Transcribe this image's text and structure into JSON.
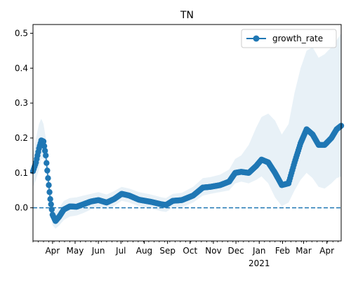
{
  "chart_data": {
    "type": "line",
    "title": "TN",
    "xlabel": "",
    "ylabel": "",
    "x_domain": [
      "2020-03-06",
      "2021-04-20"
    ],
    "ylim": [
      -0.095,
      0.525
    ],
    "yticks": [
      0.0,
      0.1,
      0.2,
      0.3,
      0.4,
      0.5
    ],
    "ytick_labels": [
      "0.0",
      "0.1",
      "0.2",
      "0.3",
      "0.4",
      "0.5"
    ],
    "xticks": [
      {
        "date": "2020-04-01",
        "label": "Apr"
      },
      {
        "date": "2020-05-01",
        "label": "May"
      },
      {
        "date": "2020-06-01",
        "label": "Jun"
      },
      {
        "date": "2020-07-01",
        "label": "Jul"
      },
      {
        "date": "2020-08-01",
        "label": "Aug"
      },
      {
        "date": "2020-09-01",
        "label": "Sep"
      },
      {
        "date": "2020-10-01",
        "label": "Oct"
      },
      {
        "date": "2020-11-01",
        "label": "Nov"
      },
      {
        "date": "2020-12-01",
        "label": "Dec"
      },
      {
        "date": "2021-01-01",
        "label": "Jan"
      },
      {
        "date": "2021-02-01",
        "label": "Feb"
      },
      {
        "date": "2021-03-01",
        "label": "Mar"
      },
      {
        "date": "2021-04-01",
        "label": "Apr"
      }
    ],
    "year_label": {
      "date": "2021-01-01",
      "label": "2021"
    },
    "reference_line": {
      "y": 0.0,
      "style": "dashed",
      "color": "#1f77b4"
    },
    "legend": {
      "position": "top-right",
      "entries": [
        "growth_rate"
      ]
    },
    "grid": false,
    "series": [
      {
        "name": "growth_rate",
        "color": "#1f77b4",
        "marker": "circle",
        "band_color": "#1f77b4",
        "band_opacity": 0.1,
        "points": [
          {
            "x": "2020-03-06",
            "y": 0.105,
            "lo": 0.06,
            "hi": 0.15
          },
          {
            "x": "2020-03-10",
            "y": 0.13,
            "lo": 0.08,
            "hi": 0.2
          },
          {
            "x": "2020-03-14",
            "y": 0.17,
            "lo": 0.11,
            "hi": 0.24
          },
          {
            "x": "2020-03-17",
            "y": 0.193,
            "lo": 0.14,
            "hi": 0.255
          },
          {
            "x": "2020-03-20",
            "y": 0.19,
            "lo": 0.14,
            "hi": 0.24
          },
          {
            "x": "2020-03-23",
            "y": 0.15,
            "lo": 0.105,
            "hi": 0.2
          },
          {
            "x": "2020-03-26",
            "y": 0.085,
            "lo": 0.045,
            "hi": 0.13
          },
          {
            "x": "2020-03-29",
            "y": 0.025,
            "lo": -0.01,
            "hi": 0.065
          },
          {
            "x": "2020-04-01",
            "y": -0.02,
            "lo": -0.05,
            "hi": 0.015
          },
          {
            "x": "2020-04-05",
            "y": -0.038,
            "lo": -0.06,
            "hi": -0.01
          },
          {
            "x": "2020-04-10",
            "y": -0.025,
            "lo": -0.05,
            "hi": 0.0
          },
          {
            "x": "2020-04-16",
            "y": -0.005,
            "lo": -0.035,
            "hi": 0.02
          },
          {
            "x": "2020-04-24",
            "y": 0.004,
            "lo": -0.025,
            "hi": 0.028
          },
          {
            "x": "2020-05-03",
            "y": 0.003,
            "lo": -0.022,
            "hi": 0.03
          },
          {
            "x": "2020-05-12",
            "y": 0.01,
            "lo": -0.015,
            "hi": 0.035
          },
          {
            "x": "2020-05-22",
            "y": 0.018,
            "lo": -0.005,
            "hi": 0.04
          },
          {
            "x": "2020-06-01",
            "y": 0.022,
            "lo": 0.0,
            "hi": 0.045
          },
          {
            "x": "2020-06-12",
            "y": 0.015,
            "lo": -0.005,
            "hi": 0.038
          },
          {
            "x": "2020-06-22",
            "y": 0.025,
            "lo": 0.005,
            "hi": 0.048
          },
          {
            "x": "2020-07-02",
            "y": 0.04,
            "lo": 0.02,
            "hi": 0.06
          },
          {
            "x": "2020-07-12",
            "y": 0.035,
            "lo": 0.015,
            "hi": 0.055
          },
          {
            "x": "2020-07-25",
            "y": 0.023,
            "lo": 0.005,
            "hi": 0.045
          },
          {
            "x": "2020-08-10",
            "y": 0.017,
            "lo": -0.002,
            "hi": 0.038
          },
          {
            "x": "2020-08-24",
            "y": 0.01,
            "lo": -0.01,
            "hi": 0.03
          },
          {
            "x": "2020-08-30",
            "y": 0.008,
            "lo": -0.012,
            "hi": 0.028
          },
          {
            "x": "2020-09-08",
            "y": 0.02,
            "lo": 0.0,
            "hi": 0.04
          },
          {
            "x": "2020-09-20",
            "y": 0.022,
            "lo": 0.002,
            "hi": 0.043
          },
          {
            "x": "2020-10-05",
            "y": 0.035,
            "lo": 0.015,
            "hi": 0.06
          },
          {
            "x": "2020-10-18",
            "y": 0.058,
            "lo": 0.035,
            "hi": 0.085
          },
          {
            "x": "2020-10-28",
            "y": 0.06,
            "lo": 0.04,
            "hi": 0.088
          },
          {
            "x": "2020-11-10",
            "y": 0.065,
            "lo": 0.045,
            "hi": 0.095
          },
          {
            "x": "2020-11-22",
            "y": 0.075,
            "lo": 0.05,
            "hi": 0.11
          },
          {
            "x": "2020-11-30",
            "y": 0.1,
            "lo": 0.07,
            "hi": 0.14
          },
          {
            "x": "2020-12-08",
            "y": 0.103,
            "lo": 0.075,
            "hi": 0.15
          },
          {
            "x": "2020-12-18",
            "y": 0.1,
            "lo": 0.07,
            "hi": 0.18
          },
          {
            "x": "2020-12-28",
            "y": 0.12,
            "lo": 0.08,
            "hi": 0.23
          },
          {
            "x": "2021-01-04",
            "y": 0.138,
            "lo": 0.09,
            "hi": 0.26
          },
          {
            "x": "2021-01-13",
            "y": 0.13,
            "lo": 0.07,
            "hi": 0.27
          },
          {
            "x": "2021-01-22",
            "y": 0.1,
            "lo": 0.03,
            "hi": 0.25
          },
          {
            "x": "2021-01-31",
            "y": 0.065,
            "lo": 0.005,
            "hi": 0.21
          },
          {
            "x": "2021-02-09",
            "y": 0.07,
            "lo": 0.015,
            "hi": 0.24
          },
          {
            "x": "2021-02-17",
            "y": 0.13,
            "lo": 0.05,
            "hi": 0.33
          },
          {
            "x": "2021-02-25",
            "y": 0.185,
            "lo": 0.08,
            "hi": 0.4
          },
          {
            "x": "2021-03-05",
            "y": 0.225,
            "lo": 0.1,
            "hi": 0.45
          },
          {
            "x": "2021-03-13",
            "y": 0.21,
            "lo": 0.085,
            "hi": 0.46
          },
          {
            "x": "2021-03-21",
            "y": 0.18,
            "lo": 0.06,
            "hi": 0.43
          },
          {
            "x": "2021-03-29",
            "y": 0.18,
            "lo": 0.055,
            "hi": 0.44
          },
          {
            "x": "2021-04-07",
            "y": 0.2,
            "lo": 0.07,
            "hi": 0.46
          },
          {
            "x": "2021-04-14",
            "y": 0.225,
            "lo": 0.085,
            "hi": 0.48
          },
          {
            "x": "2021-04-20",
            "y": 0.235,
            "lo": 0.09,
            "hi": 0.5
          }
        ]
      }
    ]
  }
}
